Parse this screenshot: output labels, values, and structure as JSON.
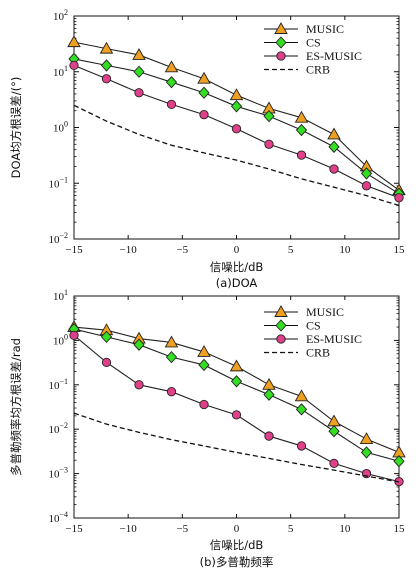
{
  "chart_data": [
    {
      "type": "line",
      "caption": "(a)DOA",
      "xlabel": "信噪比/dB",
      "ylabel": "DOA均方根误差/(°)",
      "yscale": "log",
      "xlim": [
        -15,
        15
      ],
      "ylim": [
        0.01,
        100
      ],
      "xticks": [
        -15,
        -10,
        -5,
        0,
        5,
        10,
        15
      ],
      "yticks": [
        {
          "v": 0.01,
          "e": "-2"
        },
        {
          "v": 0.1,
          "e": "-1"
        },
        {
          "v": 1,
          "e": "0"
        },
        {
          "v": 10,
          "e": "1"
        },
        {
          "v": 100,
          "e": "2"
        }
      ],
      "legend_position": "top-right",
      "x": [
        -15,
        -12,
        -9,
        -6,
        -3,
        0,
        3,
        6,
        9,
        12,
        15
      ],
      "series": [
        {
          "name": "MUSIC",
          "marker": "triangle",
          "color": "#f0a020",
          "values": [
            34,
            26,
            20,
            12,
            7.5,
            3.8,
            2.2,
            1.5,
            0.75,
            0.2,
            0.075
          ]
        },
        {
          "name": "CS",
          "marker": "diamond",
          "color": "#33dd22",
          "values": [
            17,
            13,
            10,
            6.5,
            4.2,
            2.4,
            1.6,
            0.9,
            0.45,
            0.15,
            0.065
          ]
        },
        {
          "name": "ES-MUSIC",
          "marker": "circle",
          "color": "#e0408a",
          "values": [
            13,
            7.5,
            4.2,
            2.6,
            1.7,
            0.95,
            0.5,
            0.32,
            0.18,
            0.09,
            0.055
          ]
        },
        {
          "name": "CRB",
          "marker": "none",
          "color": "#111111",
          "dashed": true,
          "values": [
            2.5,
            1.3,
            0.75,
            0.48,
            0.35,
            0.26,
            0.18,
            0.12,
            0.085,
            0.06,
            0.04
          ]
        }
      ]
    },
    {
      "type": "line",
      "caption": "(b)多普勒频率",
      "xlabel": "信噪比/dB",
      "ylabel": "多普勒频率均方根误差/rad",
      "yscale": "log",
      "xlim": [
        -15,
        15
      ],
      "ylim": [
        0.0001,
        10
      ],
      "xticks": [
        -15,
        -10,
        -5,
        0,
        5,
        10,
        15
      ],
      "yticks": [
        {
          "v": 0.0001,
          "e": "-4"
        },
        {
          "v": 0.001,
          "e": "-3"
        },
        {
          "v": 0.01,
          "e": "-2"
        },
        {
          "v": 0.1,
          "e": "-1"
        },
        {
          "v": 1,
          "e": "0"
        },
        {
          "v": 10,
          "e": "1"
        }
      ],
      "legend_position": "top-right",
      "x": [
        -15,
        -12,
        -9,
        -6,
        -3,
        0,
        3,
        6,
        9,
        12,
        15
      ],
      "series": [
        {
          "name": "MUSIC",
          "marker": "triangle",
          "color": "#f0a020",
          "values": [
            2.0,
            1.7,
            1.1,
            0.9,
            0.55,
            0.26,
            0.1,
            0.055,
            0.015,
            0.006,
            0.003
          ]
        },
        {
          "name": "CS",
          "marker": "diamond",
          "color": "#33dd22",
          "values": [
            1.8,
            1.2,
            0.8,
            0.42,
            0.28,
            0.12,
            0.06,
            0.028,
            0.009,
            0.003,
            0.0019
          ]
        },
        {
          "name": "ES-MUSIC",
          "marker": "circle",
          "color": "#e0408a",
          "values": [
            1.3,
            0.32,
            0.1,
            0.07,
            0.036,
            0.021,
            0.007,
            0.0042,
            0.0017,
            0.001,
            0.00066
          ]
        },
        {
          "name": "CRB",
          "marker": "none",
          "color": "#111111",
          "dashed": true,
          "values": [
            0.023,
            0.013,
            0.0085,
            0.0058,
            0.0042,
            0.003,
            0.0022,
            0.0016,
            0.0012,
            0.00088,
            0.00065
          ]
        }
      ]
    }
  ]
}
